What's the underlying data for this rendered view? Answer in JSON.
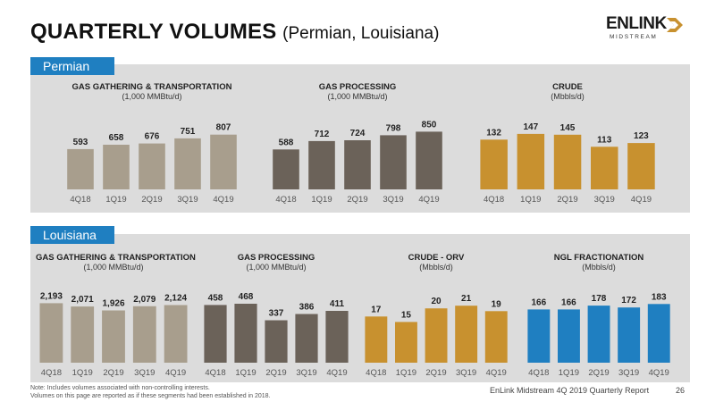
{
  "header": {
    "title_bold": "QUARTERLY VOLUMES",
    "title_sub": "(Permian, Louisiana)"
  },
  "logo": {
    "word": "ENLINK",
    "sub": "MIDSTREAM"
  },
  "sections": {
    "permian": "Permian",
    "louisiana": "Louisiana"
  },
  "colors": {
    "section_tag": "#1f7fc1",
    "section_bg": "#dcdcdc",
    "gas_gathering": "#a89e8d",
    "gas_processing": "#6b6259",
    "crude": "#c8912f",
    "ngl_fractionation": "#1f7fc1"
  },
  "chart_data": [
    {
      "id": "permian-gg",
      "type": "bar",
      "title": "GAS GATHERING & TRANSPORTATION",
      "unit": "(1,000 MMBtu/d)",
      "categories": [
        "4Q18",
        "1Q19",
        "2Q19",
        "3Q19",
        "4Q19"
      ],
      "values": [
        593,
        658,
        676,
        751,
        807
      ],
      "labels": [
        "593",
        "658",
        "676",
        "751",
        "807"
      ],
      "color": "#a89e8d",
      "ylim": [
        0,
        1000
      ]
    },
    {
      "id": "permian-gp",
      "type": "bar",
      "title": "GAS PROCESSING",
      "unit": "(1,000 MMBtu/d)",
      "categories": [
        "4Q18",
        "1Q19",
        "2Q19",
        "3Q19",
        "4Q19"
      ],
      "values": [
        588,
        712,
        724,
        798,
        850
      ],
      "labels": [
        "588",
        "712",
        "724",
        "798",
        "850"
      ],
      "color": "#6b6259",
      "ylim": [
        0,
        1000
      ]
    },
    {
      "id": "permian-crude",
      "type": "bar",
      "title": "CRUDE",
      "unit": "(Mbbls/d)",
      "categories": [
        "4Q18",
        "1Q19",
        "2Q19",
        "3Q19",
        "4Q19"
      ],
      "values": [
        132,
        147,
        145,
        113,
        123
      ],
      "labels": [
        "132",
        "147",
        "145",
        "113",
        "123"
      ],
      "color": "#c8912f",
      "ylim": [
        0,
        180
      ]
    },
    {
      "id": "louisiana-gg",
      "type": "bar",
      "title": "GAS GATHERING & TRANSPORTATION",
      "unit": "(1,000 MMBtu/d)",
      "categories": [
        "4Q18",
        "1Q19",
        "2Q19",
        "3Q19",
        "4Q19"
      ],
      "values": [
        2193,
        2071,
        1926,
        2079,
        2124
      ],
      "labels": [
        "2,193",
        "2,071",
        "1,926",
        "2,079",
        "2,124"
      ],
      "color": "#a89e8d",
      "ylim": [
        0,
        2600
      ]
    },
    {
      "id": "louisiana-gp",
      "type": "bar",
      "title": "GAS PROCESSING",
      "unit": "(1,000 MMBtu/d)",
      "categories": [
        "4Q18",
        "1Q19",
        "2Q19",
        "3Q19",
        "4Q19"
      ],
      "values": [
        458,
        468,
        337,
        386,
        411
      ],
      "labels": [
        "458",
        "468",
        "337",
        "386",
        "411"
      ],
      "color": "#6b6259",
      "ylim": [
        0,
        560
      ]
    },
    {
      "id": "louisiana-crude",
      "type": "bar",
      "title": "CRUDE - ORV",
      "unit": "(Mbbls/d)",
      "categories": [
        "4Q18",
        "1Q19",
        "2Q19",
        "3Q19",
        "4Q19"
      ],
      "values": [
        17,
        15,
        20,
        21,
        19
      ],
      "labels": [
        "17",
        "15",
        "20",
        "21",
        "19"
      ],
      "color": "#c8912f",
      "ylim": [
        0,
        26
      ]
    },
    {
      "id": "louisiana-ngl",
      "type": "bar",
      "title": "NGL FRACTIONATION",
      "unit": "(Mbbls/d)",
      "categories": [
        "4Q18",
        "1Q19",
        "2Q19",
        "3Q19",
        "4Q19"
      ],
      "values": [
        166,
        166,
        178,
        172,
        183
      ],
      "labels": [
        "166",
        "166",
        "178",
        "172",
        "183"
      ],
      "color": "#1f7fc1",
      "ylim": [
        0,
        220
      ]
    }
  ],
  "footer": {
    "note_line1": "Note: Includes volumes associated with non-controlling interests.",
    "note_line2": "Volumes on this page are reported as if these segments had been established in 2018.",
    "report": "EnLink Midstream 4Q 2019 Quarterly Report",
    "page": "26"
  }
}
